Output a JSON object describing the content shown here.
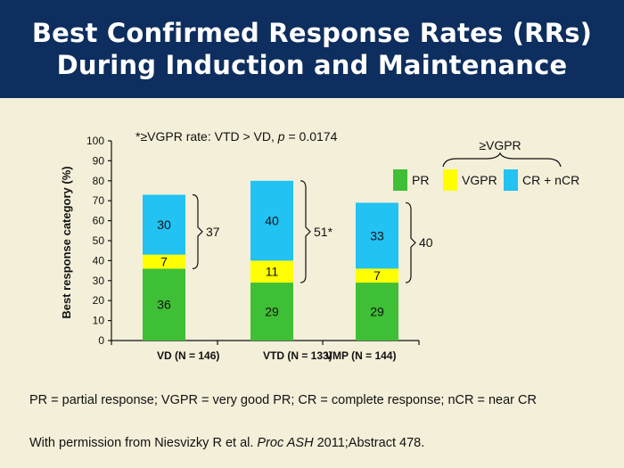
{
  "header": {
    "title_line1": "Best Confirmed Response Rates (RRs)",
    "title_line2": "During Induction and Maintenance"
  },
  "chart_data": {
    "type": "bar",
    "stacked": true,
    "ylabel": "Best response category (%)",
    "ylim": [
      0,
      100
    ],
    "yticks": [
      0,
      10,
      20,
      30,
      40,
      50,
      60,
      70,
      80,
      90,
      100
    ],
    "categories": [
      "VD (N = 146)",
      "VTD (N = 133)",
      "VMP (N = 144)"
    ],
    "series": [
      {
        "name": "PR",
        "color": "#3fbf35",
        "values": [
          36,
          29,
          29
        ]
      },
      {
        "name": "VGPR",
        "color": "#ffff00",
        "values": [
          7,
          11,
          7
        ]
      },
      {
        "name": "CR + nCR",
        "color": "#22c2f2",
        "values": [
          30,
          40,
          33
        ]
      }
    ],
    "bracket_totals": [
      "37",
      "51*",
      "40"
    ],
    "annotation_prefix": "*≥VGPR rate: VTD > VD, ",
    "annotation_p": "p",
    "annotation_suffix": " = 0.0174",
    "legend_group_label": "≥VGPR",
    "legend_position": "top-right",
    "grid": false
  },
  "footnote": "PR = partial response; VGPR = very good PR; CR = complete response; nCR = near CR",
  "credit": {
    "prefix": "With permission from Niesvizky R et al. ",
    "journal": "Proc ASH",
    "suffix": " 2011;Abstract 478."
  }
}
